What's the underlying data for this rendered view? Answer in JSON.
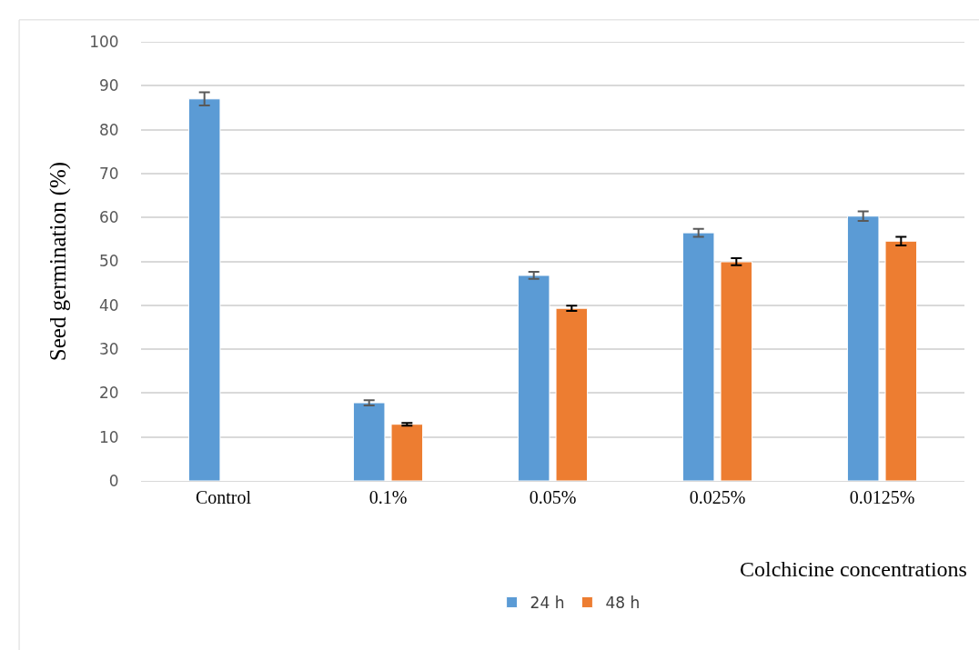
{
  "chart_data": {
    "type": "bar",
    "xlabel": "Colchicine concentrations",
    "ylabel": "Seed germination (%)",
    "categories": [
      "Control",
      "0.1%",
      "0.05%",
      "0.025%",
      "0.0125%"
    ],
    "series": [
      {
        "name": "24 h",
        "color": "#5b9bd5",
        "values": [
          87,
          17.8,
          46.8,
          56.5,
          60.3
        ],
        "errors": [
          1.5,
          0.6,
          0.8,
          0.9,
          1.1
        ]
      },
      {
        "name": "48 h",
        "color": "#ed7d31",
        "values": [
          null,
          12.9,
          39.3,
          49.9,
          54.6
        ],
        "errors": [
          null,
          0.3,
          0.6,
          0.8,
          1.0
        ]
      }
    ],
    "ylim": [
      0,
      100
    ],
    "yticks": [
      0,
      10,
      20,
      30,
      40,
      50,
      60,
      70,
      80,
      90,
      100
    ],
    "grid": "y",
    "legend": "bottom"
  }
}
